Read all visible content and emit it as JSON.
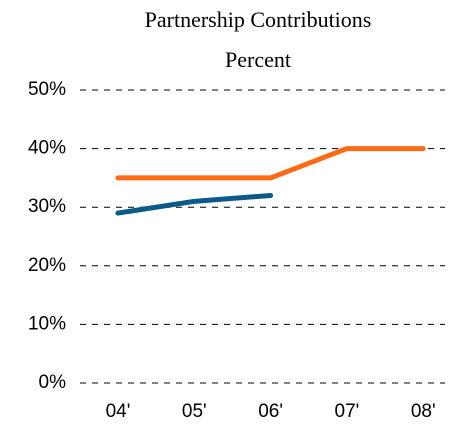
{
  "chart_data": {
    "type": "line",
    "title": "Partnership Contributions",
    "subtitle": "Percent",
    "categories": [
      "04'",
      "05'",
      "06'",
      "07'",
      "08'"
    ],
    "series": [
      {
        "color": "#0b5a8a",
        "values": [
          29,
          31,
          32,
          null,
          null
        ]
      },
      {
        "color": "#ff6a13",
        "values": [
          35,
          35,
          35,
          40,
          40
        ]
      }
    ],
    "ylim": [
      0,
      50
    ],
    "yticks": [
      {
        "value": 0,
        "label": "0%"
      },
      {
        "value": 10,
        "label": "10%"
      },
      {
        "value": 20,
        "label": "20%"
      },
      {
        "value": 30,
        "label": "30%"
      },
      {
        "value": 40,
        "label": "40%"
      },
      {
        "value": 50,
        "label": "50%"
      }
    ],
    "grid": true
  }
}
